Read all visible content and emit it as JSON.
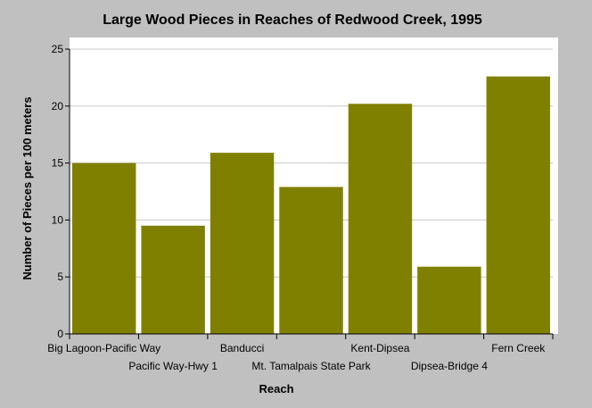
{
  "chart_data": {
    "type": "bar",
    "title": "Large Wood Pieces in Reaches of Redwood Creek, 1995",
    "xlabel": "Reach",
    "ylabel": "Number of Pieces per 100 meters",
    "categories": [
      "Big Lagoon-Pacific Way",
      "Pacific Way-Hwy 1",
      "Banducci",
      "Mt. Tamalpais State Park",
      "Kent-Dipsea",
      "Dipsea-Bridge 4",
      "Fern Creek"
    ],
    "values": [
      15.0,
      9.5,
      15.9,
      12.9,
      20.2,
      5.9,
      22.6
    ],
    "ylim": [
      0,
      25
    ],
    "yticks": [
      "0",
      "5",
      "10",
      "15",
      "20",
      "25"
    ],
    "grid": true,
    "bar_color": "#808000",
    "plot_background": "#ffffff",
    "page_background": "#c0c0c0"
  }
}
